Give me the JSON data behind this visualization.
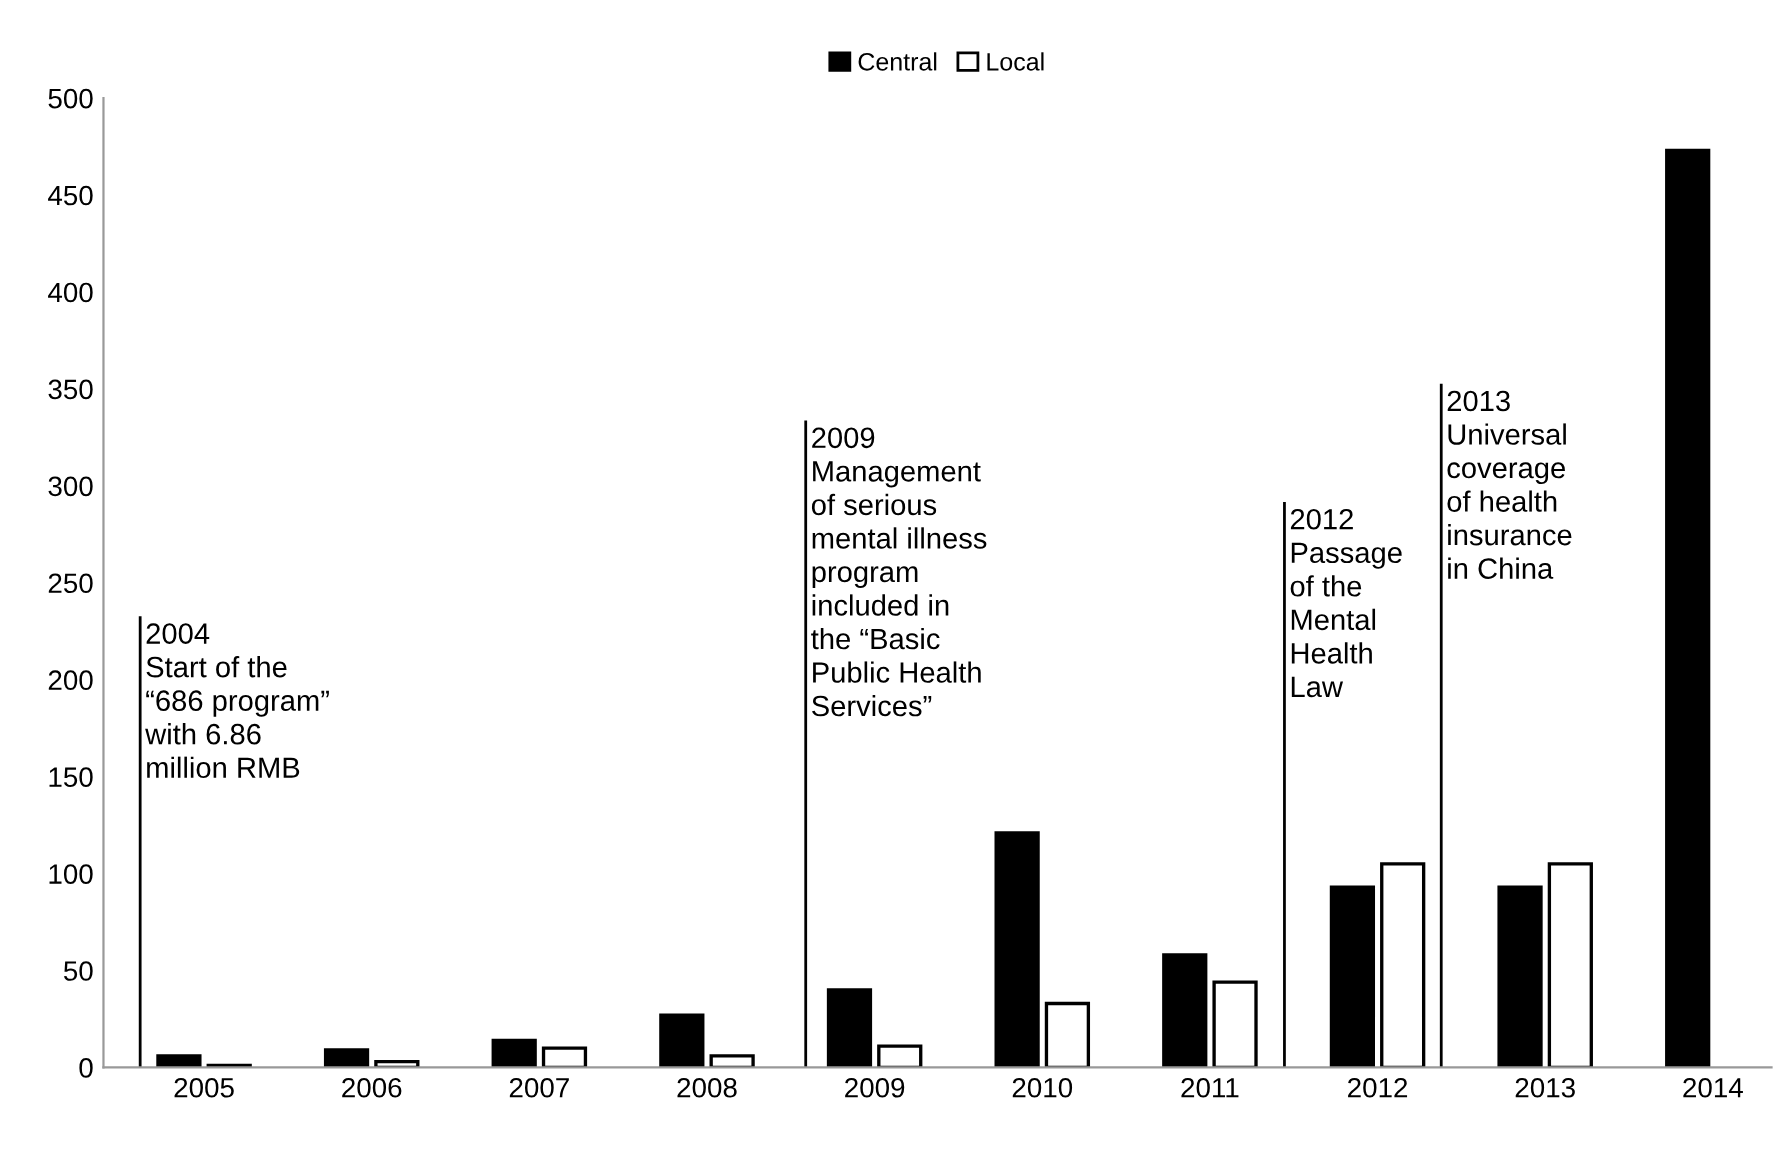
{
  "chart_data": {
    "type": "bar",
    "categories": [
      "2005",
      "2006",
      "2007",
      "2008",
      "2009",
      "2010",
      "2011",
      "2012",
      "2013",
      "2014"
    ],
    "series": [
      {
        "name": "Central",
        "color": "#000000",
        "values": [
          6,
          9,
          14,
          27,
          40,
          121,
          58,
          93,
          93,
          473
        ]
      },
      {
        "name": "Local",
        "color": "#ffffff",
        "values": [
          1,
          3,
          10,
          6,
          11,
          33,
          44,
          105,
          105,
          null
        ]
      }
    ],
    "ylim": [
      0,
      500
    ],
    "yticks": [
      0,
      50,
      100,
      150,
      200,
      250,
      300,
      350,
      400,
      450,
      500
    ],
    "legend": "top",
    "grid": false,
    "annotations": [
      "2004\nStart of the\n“686 program”\nwith 6.86\nmillion RMB",
      "2009\nManagement\nof serious\nmental illness\nprogram\nincluded in\nthe “Basic\nPublic Health\nServices”",
      "2012\nPassage\nof the\nMental\nHealth\nLaw",
      "2013\nUniversal\ncoverage\nof health\ninsurance\nin China"
    ]
  }
}
